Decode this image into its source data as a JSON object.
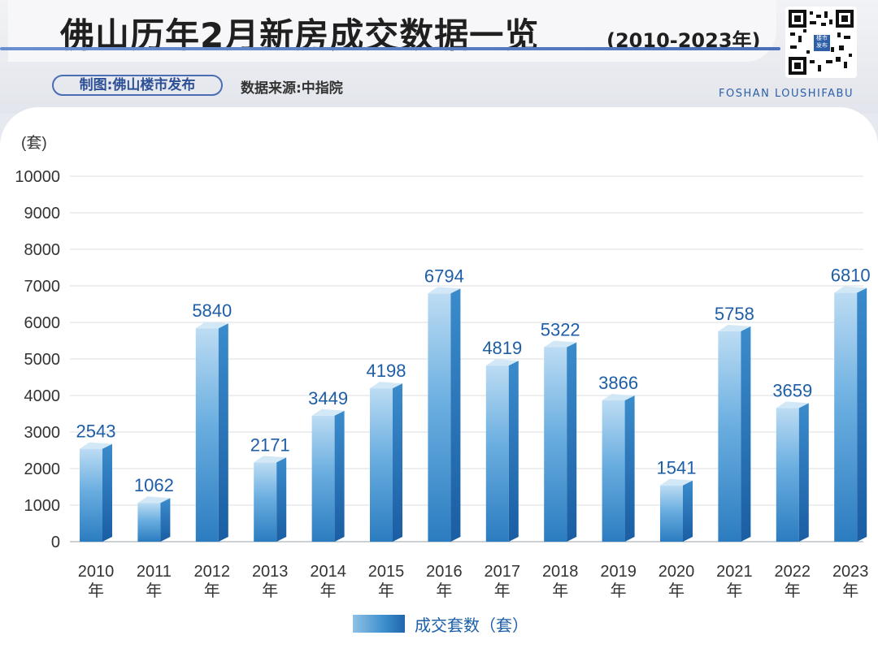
{
  "header": {
    "title": "佛山历年2月新房成交数据一览",
    "title_years": "(2010-2023年)",
    "maker": "制图:佛山楼市发布",
    "source": "数据来源:中指院",
    "brand": "FOSHAN LOUSHIFABU",
    "qr_center_text": "楼市发布",
    "qr_icon": "qr-code-icon"
  },
  "colors": {
    "bar_light": "#a9d1ef",
    "bar_mid": "#3f8fcf",
    "bar_dark": "#1c63aa",
    "label": "#1e5ea6",
    "accent": "#4b6db3"
  },
  "chart_data": {
    "type": "bar",
    "ylabel": "(套)",
    "ylim": [
      0,
      10000
    ],
    "yticks": [
      0,
      1000,
      2000,
      3000,
      4000,
      5000,
      6000,
      7000,
      8000,
      9000,
      10000
    ],
    "grid": true,
    "legend_position": "bottom-center",
    "categories": [
      "2010\n年",
      "2011\n年",
      "2012\n年",
      "2013\n年",
      "2014\n年",
      "2015\n年",
      "2016\n年",
      "2017\n年",
      "2018\n年",
      "2019\n年",
      "2020\n年",
      "2021\n年",
      "2022\n年",
      "2023\n年"
    ],
    "series": [
      {
        "name": "成交套数（套）",
        "values": [
          2543,
          1062,
          5840,
          2171,
          3449,
          4198,
          6794,
          4819,
          5322,
          3866,
          1541,
          5758,
          3659,
          6810
        ]
      }
    ]
  }
}
